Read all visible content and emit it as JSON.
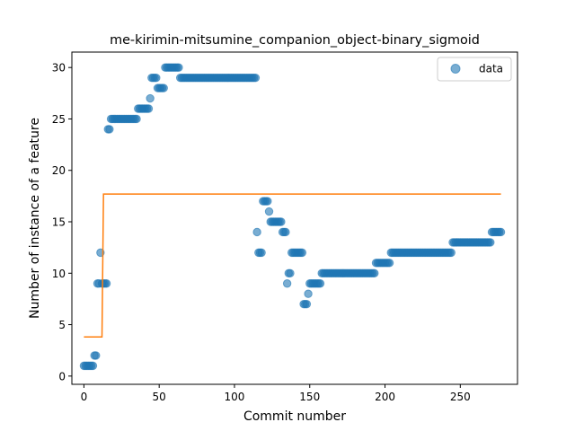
{
  "chart_data": {
    "type": "scatter",
    "title": "me-kirimin-mitsumine_companion_object-binary_sigmoid",
    "xlabel": "Commit number",
    "ylabel": "Number of instance of a feature",
    "xlim": [
      -8,
      288
    ],
    "ylim": [
      -0.8,
      31.5
    ],
    "xticks": [
      0,
      50,
      100,
      150,
      200,
      250
    ],
    "yticks": [
      0,
      5,
      10,
      15,
      20,
      25,
      30
    ],
    "grid": false,
    "legend": {
      "position": "top-right",
      "entries": [
        "data"
      ]
    },
    "colors": {
      "points": "#1f77b4",
      "fit": "#ff7f0e"
    },
    "segments": [
      [
        0,
        1,
        1
      ],
      [
        6,
        1,
        1
      ],
      [
        7,
        2,
        2
      ],
      [
        9,
        9,
        9
      ],
      [
        11,
        12,
        12
      ],
      [
        12,
        9,
        9
      ],
      [
        14,
        9,
        9
      ],
      [
        16,
        24,
        24
      ],
      [
        17,
        24,
        24
      ],
      [
        18,
        25,
        25
      ],
      [
        35,
        25,
        25
      ],
      [
        36,
        26,
        26
      ],
      [
        43,
        26,
        26
      ],
      [
        44,
        27,
        27
      ],
      [
        45,
        29,
        29
      ],
      [
        48,
        29,
        29
      ],
      [
        49,
        28,
        28
      ],
      [
        53,
        28,
        28
      ],
      [
        54,
        30,
        30
      ],
      [
        63,
        30,
        30
      ],
      [
        64,
        29,
        29
      ],
      [
        114,
        29,
        29
      ],
      [
        115,
        14,
        14
      ],
      [
        116,
        12,
        12
      ],
      [
        118,
        12,
        12
      ],
      [
        119,
        17,
        17
      ],
      [
        122,
        17,
        17
      ],
      [
        123,
        16,
        16
      ],
      [
        124,
        15,
        15
      ],
      [
        131,
        15,
        15
      ],
      [
        132,
        14,
        14
      ],
      [
        134,
        14,
        14
      ],
      [
        135,
        9,
        9
      ],
      [
        136,
        10,
        10
      ],
      [
        137,
        10,
        10
      ],
      [
        138,
        12,
        12
      ],
      [
        145,
        12,
        12
      ],
      [
        146,
        7,
        7
      ],
      [
        148,
        7,
        7
      ],
      [
        149,
        8,
        8
      ],
      [
        150,
        9,
        9
      ],
      [
        157,
        9,
        9
      ],
      [
        158,
        10,
        10
      ],
      [
        193,
        10,
        10
      ],
      [
        194,
        11,
        11
      ],
      [
        203,
        11,
        11
      ],
      [
        204,
        12,
        12
      ],
      [
        244,
        12,
        12
      ],
      [
        245,
        13,
        13
      ],
      [
        270,
        13,
        13
      ],
      [
        271,
        14,
        14
      ],
      [
        277,
        14,
        14
      ]
    ],
    "fit_line": {
      "x": [
        0,
        12,
        13,
        277
      ],
      "y": [
        3.8,
        3.8,
        17.7,
        17.7
      ]
    }
  }
}
